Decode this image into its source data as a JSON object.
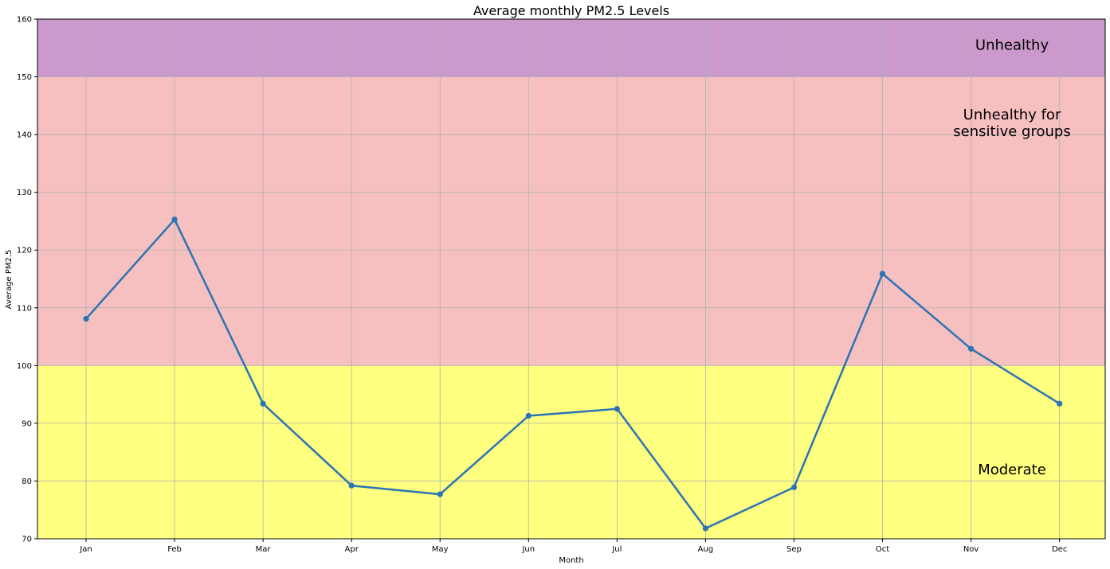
{
  "chart_data": {
    "type": "line",
    "title": "Average monthly PM2.5 Levels",
    "xlabel": "Month",
    "ylabel": "Average PM2.5",
    "categories": [
      "Jan",
      "Feb",
      "Mar",
      "Apr",
      "May",
      "Jun",
      "Jul",
      "Aug",
      "Sep",
      "Oct",
      "Nov",
      "Dec"
    ],
    "series": [
      {
        "values": [
          108.1,
          125.3,
          93.4,
          79.2,
          77.7,
          91.3,
          92.5,
          71.8,
          78.9,
          115.9,
          102.9,
          93.4
        ]
      }
    ],
    "ylim": [
      70,
      160
    ],
    "yticks": [
      70,
      80,
      90,
      100,
      110,
      120,
      130,
      140,
      150,
      160
    ],
    "grid": true,
    "line_color": "#2b74b4",
    "bands": [
      {
        "from": 70,
        "to": 100,
        "color": "#ffff80",
        "label_lines": [
          "Moderate"
        ],
        "label_y": 82
      },
      {
        "from": 100,
        "to": 150,
        "color": "#f6bfc0",
        "label_lines": [
          "Unhealthy for",
          "sensitive groups"
        ],
        "label_y": 142
      },
      {
        "from": 150,
        "to": 160,
        "color": "#cc99cc",
        "label_lines": [
          "Unhealthy"
        ],
        "label_y": 155.5
      }
    ]
  }
}
